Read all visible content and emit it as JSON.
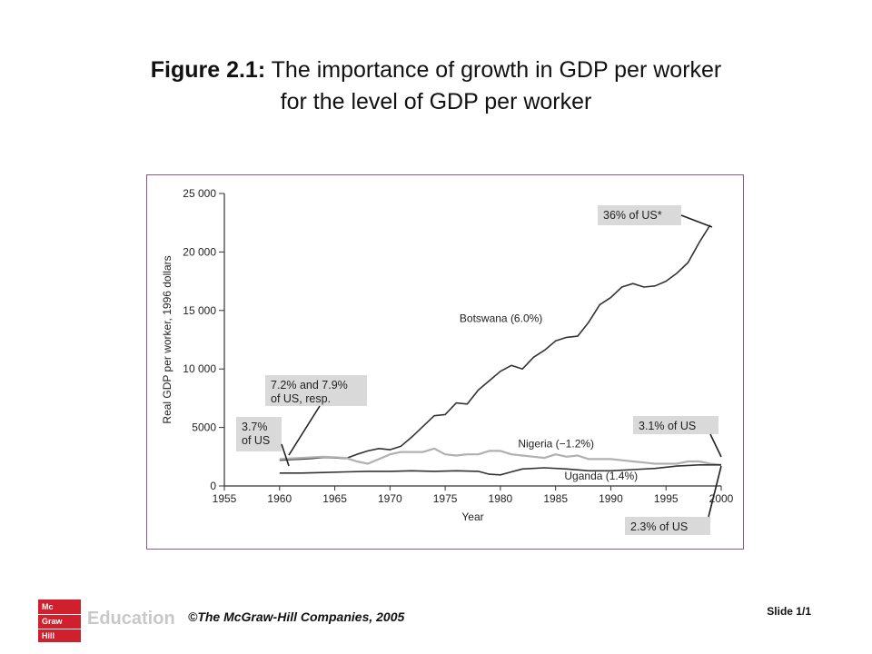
{
  "slide": {
    "title_bold": "Figure 2.1:",
    "title_line1": " The importance of growth in GDP per worker",
    "title_line2": "for the level of GDP per worker",
    "copyright": "©The McGraw-Hill Companies, 2005",
    "slide_number": "Slide 1/1",
    "logo_lines": [
      "Mc",
      "Graw",
      "Hill"
    ],
    "logo_word": "Education"
  },
  "colors": {
    "botswana": "#333333",
    "nigeria": "#b0b0b0",
    "uganda": "#333333",
    "callout_bg": "#d9d9d9",
    "frame": "#8a5a8a",
    "logo": "#d01f2d"
  },
  "chart_data": {
    "type": "line",
    "xlabel": "Year",
    "ylabel": "Real GDP per worker, 1996 dollars",
    "xlim": [
      1955,
      2000
    ],
    "ylim": [
      0,
      25000
    ],
    "x_ticks": [
      1955,
      1960,
      1965,
      1970,
      1975,
      1980,
      1985,
      1990,
      1995,
      2000
    ],
    "y_ticks": [
      0,
      5000,
      10000,
      15000,
      20000,
      25000
    ],
    "y_tick_labels": [
      "0",
      "5000",
      "10 000",
      "15 000",
      "20 000",
      "25 000"
    ],
    "series": [
      {
        "name": "Botswana (6.0%)",
        "x": [
          1960,
          1961,
          1962,
          1963,
          1964,
          1965,
          1966,
          1967,
          1968,
          1969,
          1970,
          1971,
          1972,
          1973,
          1974,
          1975,
          1976,
          1977,
          1978,
          1979,
          1980,
          1981,
          1982,
          1983,
          1984,
          1985,
          1986,
          1987,
          1988,
          1989,
          1990,
          1991,
          1992,
          1993,
          1994,
          1995,
          1996,
          1997,
          1998,
          1999
        ],
        "y": [
          2200,
          2250,
          2300,
          2350,
          2450,
          2400,
          2350,
          2700,
          3000,
          3200,
          3100,
          3400,
          4200,
          5100,
          6000,
          6100,
          7100,
          7000,
          8200,
          9000,
          9800,
          10300,
          10000,
          11000,
          11600,
          12400,
          12700,
          12800,
          14000,
          15500,
          16100,
          17000,
          17300,
          17000,
          17100,
          17500,
          18200,
          19100,
          20800,
          22300
        ]
      },
      {
        "name": "Nigeria (−1.2%)",
        "x": [
          1960,
          1962,
          1964,
          1966,
          1967,
          1968,
          1969,
          1970,
          1971,
          1972,
          1973,
          1974,
          1975,
          1976,
          1977,
          1978,
          1979,
          1980,
          1981,
          1982,
          1983,
          1984,
          1985,
          1986,
          1987,
          1988,
          1989,
          1990,
          1991,
          1992,
          1993,
          1994,
          1995,
          1996,
          1997,
          1998,
          1999,
          2000
        ],
        "y": [
          2300,
          2400,
          2500,
          2400,
          2100,
          1900,
          2300,
          2700,
          2900,
          2900,
          2900,
          3200,
          2700,
          2600,
          2700,
          2700,
          3000,
          3000,
          2700,
          2600,
          2500,
          2400,
          2700,
          2500,
          2600,
          2300,
          2300,
          2300,
          2200,
          2100,
          2000,
          1900,
          1900,
          1900,
          2100,
          2100,
          1900,
          1800
        ]
      },
      {
        "name": "Uganda (1.4%)",
        "x": [
          1960,
          1962,
          1964,
          1966,
          1968,
          1970,
          1972,
          1974,
          1976,
          1978,
          1979,
          1980,
          1981,
          1982,
          1984,
          1986,
          1988,
          1990,
          1992,
          1994,
          1996,
          1998,
          2000
        ],
        "y": [
          1100,
          1100,
          1150,
          1200,
          1250,
          1250,
          1300,
          1250,
          1300,
          1250,
          1000,
          950,
          1200,
          1450,
          1550,
          1450,
          1300,
          1300,
          1400,
          1500,
          1700,
          1800,
          1800
        ]
      }
    ],
    "annotations": [
      {
        "lines": [
          "36% of US*"
        ]
      },
      {
        "lines": [
          "7.2% and 7.9%",
          "of US, resp."
        ]
      },
      {
        "lines": [
          "3.7%",
          "of US"
        ]
      },
      {
        "lines": [
          "3.1% of US"
        ]
      },
      {
        "lines": [
          "2.3% of US"
        ]
      }
    ],
    "grid": false
  }
}
